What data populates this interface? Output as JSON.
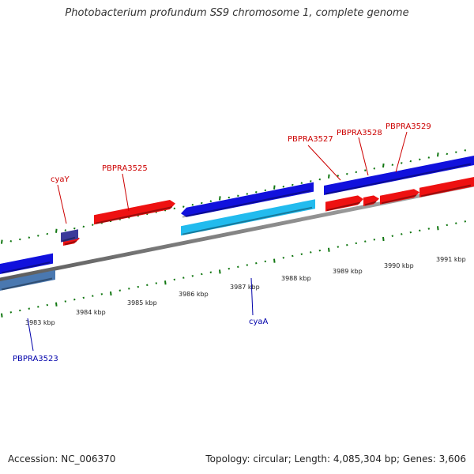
{
  "title": "Photobacterium profundum SS9 chromosome 1, complete genome",
  "footer": {
    "accession": "Accession: NC_006370",
    "summary": "Topology: circular; Length: 4,085,304 bp; Genes: 3,606"
  },
  "colors": {
    "forward_strand": "#ee1111",
    "reverse_strand": "#1111dd",
    "forward_label": "#cc0000",
    "reverse_label": "#0000aa",
    "tick": "#117711",
    "backbone": "#8a8a8a"
  },
  "scale_ticks": [
    {
      "label": "3983 kbp"
    },
    {
      "label": "3984 kbp"
    },
    {
      "label": "3985 kbp"
    },
    {
      "label": "3986 kbp"
    },
    {
      "label": "3987 kbp"
    },
    {
      "label": "3988 kbp"
    },
    {
      "label": "3989 kbp"
    },
    {
      "label": "3990 kbp"
    },
    {
      "label": "3991 kbp"
    }
  ],
  "gene_labels": [
    {
      "text": "cyaY",
      "strand": "forward"
    },
    {
      "text": "PBPRA3525",
      "strand": "forward"
    },
    {
      "text": "PBPRA3527",
      "strand": "forward"
    },
    {
      "text": "PBPRA3528",
      "strand": "forward"
    },
    {
      "text": "PBPRA3529",
      "strand": "forward"
    },
    {
      "text": "cyaA",
      "strand": "reverse"
    },
    {
      "text": "PBPRA3523",
      "strand": "reverse"
    }
  ]
}
